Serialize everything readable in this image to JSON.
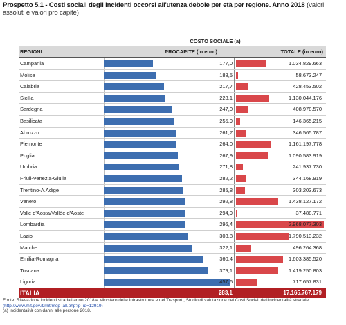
{
  "title": {
    "bold": "Prospetto 5.1 - Costi sociali degli incidenti occorsi all'utenza debole per età per regione. Anno 2018",
    "rest": "(valori assoluti e valori pro capite)"
  },
  "table": {
    "group_header": "COSTO SOCIALE (a)",
    "col_region": "REGIONI",
    "col_percapita": "PROCAPITE (in euro)",
    "col_total": "TOTALE (in euro)",
    "rows": [
      {
        "name": "Campania",
        "percapita": "177,0",
        "total": "1.034.829.663",
        "pc": 177.0,
        "tot": 1034829663
      },
      {
        "name": "Molise",
        "percapita": "188,5",
        "total": "58.673.247",
        "pc": 188.5,
        "tot": 58673247
      },
      {
        "name": "Calabria",
        "percapita": "217,7",
        "total": "428.453.502",
        "pc": 217.7,
        "tot": 428453502
      },
      {
        "name": "Sicilia",
        "percapita": "223,1",
        "total": "1.130.044.176",
        "pc": 223.1,
        "tot": 1130044176
      },
      {
        "name": "Sardegna",
        "percapita": "247,0",
        "total": "408.978.570",
        "pc": 247.0,
        "tot": 408978570
      },
      {
        "name": "Basilicata",
        "percapita": "255,9",
        "total": "146.365.215",
        "pc": 255.9,
        "tot": 146365215
      },
      {
        "name": "Abruzzo",
        "percapita": "261,7",
        "total": "346.565.787",
        "pc": 261.7,
        "tot": 346565787
      },
      {
        "name": "Piemonte",
        "percapita": "264,0",
        "total": "1.161.197.778",
        "pc": 264.0,
        "tot": 1161197778
      },
      {
        "name": "Puglia",
        "percapita": "267,9",
        "total": "1.090.583.919",
        "pc": 267.9,
        "tot": 1090583919
      },
      {
        "name": "Umbria",
        "percapita": "271,8",
        "total": "241.937.730",
        "pc": 271.8,
        "tot": 241937730
      },
      {
        "name": "Friuli-Venezia-Giulia",
        "percapita": "282,2",
        "total": "344.168.919",
        "pc": 282.2,
        "tot": 344168919
      },
      {
        "name": "Trentino-A.Adige",
        "percapita": "285,8",
        "total": "303.203.673",
        "pc": 285.8,
        "tot": 303203673
      },
      {
        "name": "Veneto",
        "percapita": "292,8",
        "total": "1.438.127.172",
        "pc": 292.8,
        "tot": 1438127172
      },
      {
        "name": "Valle d'Aosta/Vallée d'Aoste",
        "percapita": "294,9",
        "total": "37.488.771",
        "pc": 294.9,
        "tot": 37488771
      },
      {
        "name": "Lombardia",
        "percapita": "296,4",
        "total": "2.968.077.303",
        "pc": 296.4,
        "tot": 2968077303
      },
      {
        "name": "Lazio",
        "percapita": "303,8",
        "total": "1.790.513.232",
        "pc": 303.8,
        "tot": 1790513232
      },
      {
        "name": "Marche",
        "percapita": "322,1",
        "total": "496.264.368",
        "pc": 322.1,
        "tot": 496264368
      },
      {
        "name": "Emilia-Romagna",
        "percapita": "360,4",
        "total": "1.603.385.520",
        "pc": 360.4,
        "tot": 1603385520
      },
      {
        "name": "Toscana",
        "percapita": "379,1",
        "total": "1.419.250.803",
        "pc": 379.1,
        "tot": 1419250803
      },
      {
        "name": "Liguria",
        "percapita": "457,6",
        "total": "717.657.831",
        "pc": 457.6,
        "tot": 717657831
      }
    ],
    "total_row": {
      "name": "ITALIA",
      "percapita": "283,1",
      "total": "17.165.767.179"
    }
  },
  "notes": {
    "source": "Fonte: Rilevazione incidenti stradali anno 2018  e Ministero delle Infrastrutture e dei Trasporti, Studio di valutazione dei Costi Sociali dell'incidentalità stradale",
    "link": "(http://www.mit.gov.it/mit/mop_all.php?p_id=12919)",
    "footnote": "(a) Incidentalità con danni alle persone 2018."
  },
  "colors": {
    "percapita_bar": "#3d6eb0",
    "total_bar": "#d9474a",
    "total_row_bg": "#b11f23"
  }
}
